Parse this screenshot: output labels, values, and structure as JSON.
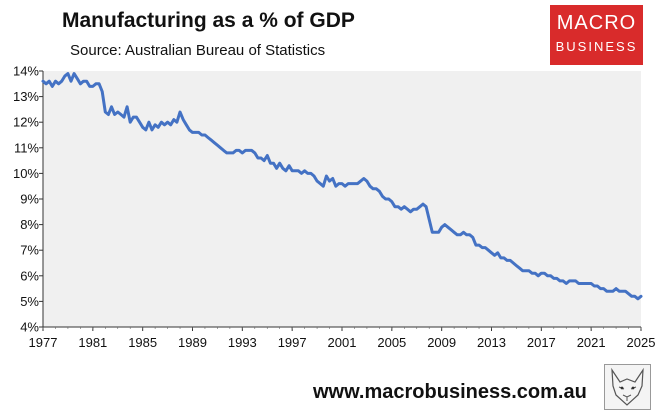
{
  "header": {
    "title": "Manufacturing as a % of GDP",
    "subtitle": "Source: Australian Bureau of Statistics"
  },
  "logo": {
    "line1": "MACRO",
    "line2": "BUSINESS"
  },
  "footer": {
    "website": "www.macrobusiness.com.au",
    "mascot_icon": "fox-sketch-icon"
  },
  "colors": {
    "line": "#4472c4",
    "plot_bg": "#f0f0f0",
    "logo_bg": "#d92b2b"
  },
  "chart_data": {
    "type": "line",
    "title": "Manufacturing as a % of GDP",
    "subtitle": "Source: Australian Bureau of Statistics",
    "xlabel": "",
    "ylabel": "",
    "xlim": [
      1977,
      2025
    ],
    "ylim": [
      4,
      14
    ],
    "x_ticks": [
      "1977",
      "1981",
      "1985",
      "1989",
      "1993",
      "1997",
      "2001",
      "2005",
      "2009",
      "2013",
      "2017",
      "2021",
      "2025"
    ],
    "y_ticks": [
      "4%",
      "5%",
      "6%",
      "7%",
      "8%",
      "9%",
      "10%",
      "11%",
      "12%",
      "13%",
      "14%"
    ],
    "grid": false,
    "legend": "none",
    "series": [
      {
        "values": [
          [
            1977.0,
            13.6
          ],
          [
            1977.25,
            13.5
          ],
          [
            1977.5,
            13.6
          ],
          [
            1977.75,
            13.4
          ],
          [
            1978.0,
            13.6
          ],
          [
            1978.25,
            13.5
          ],
          [
            1978.5,
            13.6
          ],
          [
            1978.75,
            13.8
          ],
          [
            1979.0,
            13.9
          ],
          [
            1979.25,
            13.6
          ],
          [
            1979.5,
            13.9
          ],
          [
            1979.75,
            13.7
          ],
          [
            1980.0,
            13.5
          ],
          [
            1980.25,
            13.6
          ],
          [
            1980.5,
            13.6
          ],
          [
            1980.75,
            13.4
          ],
          [
            1981.0,
            13.4
          ],
          [
            1981.25,
            13.5
          ],
          [
            1981.5,
            13.5
          ],
          [
            1981.75,
            13.2
          ],
          [
            1982.0,
            12.4
          ],
          [
            1982.25,
            12.3
          ],
          [
            1982.5,
            12.6
          ],
          [
            1982.75,
            12.3
          ],
          [
            1983.0,
            12.4
          ],
          [
            1983.25,
            12.3
          ],
          [
            1983.5,
            12.2
          ],
          [
            1983.75,
            12.6
          ],
          [
            1984.0,
            12.0
          ],
          [
            1984.25,
            12.2
          ],
          [
            1984.5,
            12.2
          ],
          [
            1984.75,
            12.0
          ],
          [
            1985.0,
            11.8
          ],
          [
            1985.25,
            11.7
          ],
          [
            1985.5,
            12.0
          ],
          [
            1985.75,
            11.7
          ],
          [
            1986.0,
            11.9
          ],
          [
            1986.25,
            11.8
          ],
          [
            1986.5,
            12.0
          ],
          [
            1986.75,
            11.9
          ],
          [
            1987.0,
            12.0
          ],
          [
            1987.25,
            11.9
          ],
          [
            1987.5,
            12.1
          ],
          [
            1987.75,
            12.0
          ],
          [
            1988.0,
            12.4
          ],
          [
            1988.25,
            12.1
          ],
          [
            1988.5,
            11.9
          ],
          [
            1988.75,
            11.7
          ],
          [
            1989.0,
            11.6
          ],
          [
            1989.25,
            11.6
          ],
          [
            1989.5,
            11.6
          ],
          [
            1989.75,
            11.5
          ],
          [
            1990.0,
            11.5
          ],
          [
            1990.25,
            11.4
          ],
          [
            1990.5,
            11.3
          ],
          [
            1990.75,
            11.2
          ],
          [
            1991.0,
            11.1
          ],
          [
            1991.25,
            11.0
          ],
          [
            1991.5,
            10.9
          ],
          [
            1991.75,
            10.8
          ],
          [
            1992.0,
            10.8
          ],
          [
            1992.25,
            10.8
          ],
          [
            1992.5,
            10.9
          ],
          [
            1992.75,
            10.9
          ],
          [
            1993.0,
            10.8
          ],
          [
            1993.25,
            10.9
          ],
          [
            1993.5,
            10.9
          ],
          [
            1993.75,
            10.9
          ],
          [
            1994.0,
            10.8
          ],
          [
            1994.25,
            10.6
          ],
          [
            1994.5,
            10.6
          ],
          [
            1994.75,
            10.5
          ],
          [
            1995.0,
            10.7
          ],
          [
            1995.25,
            10.4
          ],
          [
            1995.5,
            10.4
          ],
          [
            1995.75,
            10.2
          ],
          [
            1996.0,
            10.4
          ],
          [
            1996.25,
            10.2
          ],
          [
            1996.5,
            10.1
          ],
          [
            1996.75,
            10.3
          ],
          [
            1997.0,
            10.1
          ],
          [
            1997.25,
            10.1
          ],
          [
            1997.5,
            10.1
          ],
          [
            1997.75,
            10.0
          ],
          [
            1998.0,
            10.1
          ],
          [
            1998.25,
            10.0
          ],
          [
            1998.5,
            10.0
          ],
          [
            1998.75,
            9.9
          ],
          [
            1999.0,
            9.7
          ],
          [
            1999.25,
            9.6
          ],
          [
            1999.5,
            9.5
          ],
          [
            1999.75,
            9.9
          ],
          [
            2000.0,
            9.7
          ],
          [
            2000.25,
            9.8
          ],
          [
            2000.5,
            9.5
          ],
          [
            2000.75,
            9.6
          ],
          [
            2001.0,
            9.6
          ],
          [
            2001.25,
            9.5
          ],
          [
            2001.5,
            9.6
          ],
          [
            2001.75,
            9.6
          ],
          [
            2002.0,
            9.6
          ],
          [
            2002.25,
            9.6
          ],
          [
            2002.5,
            9.7
          ],
          [
            2002.75,
            9.8
          ],
          [
            2003.0,
            9.7
          ],
          [
            2003.25,
            9.5
          ],
          [
            2003.5,
            9.4
          ],
          [
            2003.75,
            9.4
          ],
          [
            2004.0,
            9.3
          ],
          [
            2004.25,
            9.1
          ],
          [
            2004.5,
            9.0
          ],
          [
            2004.75,
            9.0
          ],
          [
            2005.0,
            8.9
          ],
          [
            2005.25,
            8.7
          ],
          [
            2005.5,
            8.7
          ],
          [
            2005.75,
            8.6
          ],
          [
            2006.0,
            8.7
          ],
          [
            2006.25,
            8.6
          ],
          [
            2006.5,
            8.5
          ],
          [
            2006.75,
            8.6
          ],
          [
            2007.0,
            8.6
          ],
          [
            2007.25,
            8.7
          ],
          [
            2007.5,
            8.8
          ],
          [
            2007.75,
            8.7
          ],
          [
            2008.0,
            8.2
          ],
          [
            2008.25,
            7.7
          ],
          [
            2008.5,
            7.7
          ],
          [
            2008.75,
            7.7
          ],
          [
            2009.0,
            7.9
          ],
          [
            2009.25,
            8.0
          ],
          [
            2009.5,
            7.9
          ],
          [
            2009.75,
            7.8
          ],
          [
            2010.0,
            7.7
          ],
          [
            2010.25,
            7.6
          ],
          [
            2010.5,
            7.6
          ],
          [
            2010.75,
            7.7
          ],
          [
            2011.0,
            7.6
          ],
          [
            2011.25,
            7.6
          ],
          [
            2011.5,
            7.5
          ],
          [
            2011.75,
            7.2
          ],
          [
            2012.0,
            7.2
          ],
          [
            2012.25,
            7.1
          ],
          [
            2012.5,
            7.1
          ],
          [
            2012.75,
            7.0
          ],
          [
            2013.0,
            6.9
          ],
          [
            2013.25,
            6.8
          ],
          [
            2013.5,
            6.9
          ],
          [
            2013.75,
            6.7
          ],
          [
            2014.0,
            6.7
          ],
          [
            2014.25,
            6.6
          ],
          [
            2014.5,
            6.6
          ],
          [
            2014.75,
            6.5
          ],
          [
            2015.0,
            6.4
          ],
          [
            2015.25,
            6.3
          ],
          [
            2015.5,
            6.2
          ],
          [
            2015.75,
            6.2
          ],
          [
            2016.0,
            6.2
          ],
          [
            2016.25,
            6.1
          ],
          [
            2016.5,
            6.1
          ],
          [
            2016.75,
            6.0
          ],
          [
            2017.0,
            6.1
          ],
          [
            2017.25,
            6.1
          ],
          [
            2017.5,
            6.0
          ],
          [
            2017.75,
            6.0
          ],
          [
            2018.0,
            5.9
          ],
          [
            2018.25,
            5.9
          ],
          [
            2018.5,
            5.8
          ],
          [
            2018.75,
            5.8
          ],
          [
            2019.0,
            5.7
          ],
          [
            2019.25,
            5.8
          ],
          [
            2019.5,
            5.8
          ],
          [
            2019.75,
            5.8
          ],
          [
            2020.0,
            5.7
          ],
          [
            2020.25,
            5.7
          ],
          [
            2020.5,
            5.7
          ],
          [
            2020.75,
            5.7
          ],
          [
            2021.0,
            5.7
          ],
          [
            2021.25,
            5.6
          ],
          [
            2021.5,
            5.6
          ],
          [
            2021.75,
            5.5
          ],
          [
            2022.0,
            5.5
          ],
          [
            2022.25,
            5.4
          ],
          [
            2022.5,
            5.4
          ],
          [
            2022.75,
            5.4
          ],
          [
            2023.0,
            5.5
          ],
          [
            2023.25,
            5.4
          ],
          [
            2023.5,
            5.4
          ],
          [
            2023.75,
            5.4
          ],
          [
            2024.0,
            5.3
          ],
          [
            2024.25,
            5.2
          ],
          [
            2024.5,
            5.2
          ],
          [
            2024.75,
            5.1
          ],
          [
            2025.0,
            5.2
          ]
        ]
      }
    ]
  }
}
